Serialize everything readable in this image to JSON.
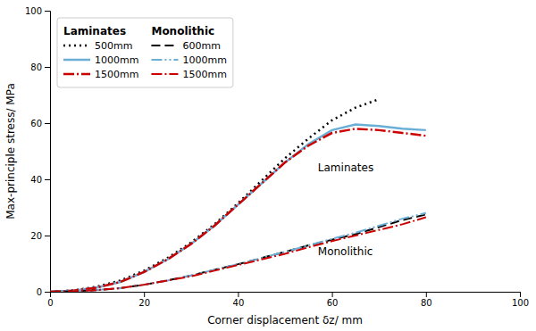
{
  "chart_data": {
    "type": "line",
    "xlabel": "Corner displacement δz/ mm",
    "ylabel": "Max-principle stress/ MPa",
    "xlim": [
      0,
      100
    ],
    "ylim": [
      0,
      100
    ],
    "xticks": [
      0,
      20,
      40,
      60,
      80,
      100
    ],
    "yticks": [
      0,
      20,
      40,
      60,
      80,
      100
    ],
    "grid": false,
    "legend": "upper left",
    "series": [
      {
        "name": "500mm",
        "group": "Laminates",
        "color": "#000000",
        "line_style": "dotted",
        "x": [
          0,
          5,
          10,
          15,
          20,
          25,
          30,
          35,
          40,
          45,
          50,
          55,
          60,
          65,
          70
        ],
        "values": [
          0,
          0.5,
          1.8,
          4.0,
          7.5,
          12.0,
          17.5,
          24.0,
          31.5,
          39.5,
          47.5,
          54.5,
          61.0,
          65.5,
          68.5
        ]
      },
      {
        "name": "1000mm",
        "group": "Laminates",
        "color": "#6baed6",
        "line_style": "solid",
        "x": [
          0,
          5,
          10,
          15,
          20,
          25,
          30,
          35,
          40,
          45,
          50,
          55,
          60,
          65,
          70,
          75,
          80
        ],
        "values": [
          0,
          0.4,
          1.5,
          3.5,
          7.0,
          11.5,
          17.0,
          23.5,
          31.0,
          38.5,
          46.0,
          52.5,
          57.5,
          59.5,
          59.0,
          58.0,
          57.5
        ]
      },
      {
        "name": "1500mm",
        "group": "Laminates",
        "color": "#cc0000",
        "line_style": "dashdot",
        "x": [
          0,
          5,
          10,
          15,
          20,
          25,
          30,
          35,
          40,
          45,
          50,
          55,
          60,
          65,
          70,
          75,
          80
        ],
        "values": [
          0,
          0.4,
          1.5,
          3.5,
          7.0,
          11.5,
          17.0,
          23.5,
          31.0,
          38.5,
          46.0,
          52.0,
          56.5,
          58.0,
          57.5,
          56.5,
          55.5
        ]
      },
      {
        "name": "600mm",
        "group": "Monolithic",
        "color": "#000000",
        "line_style": "dashed",
        "x": [
          0,
          5,
          10,
          15,
          20,
          25,
          30,
          35,
          40,
          45,
          50,
          55,
          60,
          65,
          70,
          75,
          80
        ],
        "values": [
          0,
          0.2,
          0.6,
          1.3,
          2.5,
          4.0,
          5.8,
          7.8,
          9.8,
          12.0,
          14.2,
          16.5,
          18.5,
          20.5,
          23.0,
          25.5,
          27.5
        ]
      },
      {
        "name": "1000mm",
        "group": "Monolithic",
        "color": "#6baed6",
        "line_style": "dashdotdot",
        "x": [
          0,
          5,
          10,
          15,
          20,
          25,
          30,
          35,
          40,
          45,
          50,
          55,
          60,
          65,
          70,
          75,
          80
        ],
        "values": [
          0,
          0.2,
          0.6,
          1.3,
          2.5,
          4.0,
          5.8,
          7.8,
          9.8,
          12.0,
          14.2,
          16.5,
          18.8,
          21.0,
          23.5,
          26.0,
          28.0
        ]
      },
      {
        "name": "1500mm",
        "group": "Monolithic",
        "color": "#cc0000",
        "line_style": "dashdot",
        "x": [
          0,
          5,
          10,
          15,
          20,
          25,
          30,
          35,
          40,
          45,
          50,
          55,
          60,
          65,
          70,
          75,
          80
        ],
        "values": [
          0,
          0.2,
          0.6,
          1.3,
          2.5,
          4.0,
          5.5,
          7.5,
          9.5,
          11.5,
          13.5,
          15.8,
          18.0,
          20.0,
          22.0,
          24.0,
          26.5
        ]
      }
    ],
    "annotations": [
      {
        "text": "Laminates",
        "x": 57,
        "y": 43
      },
      {
        "text": "Monolithic",
        "x": 57,
        "y": 13
      }
    ]
  }
}
